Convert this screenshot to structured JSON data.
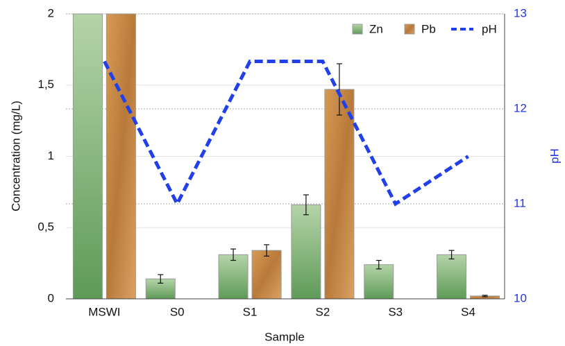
{
  "chart_data": {
    "type": "bar-line",
    "xlabel": "Sample",
    "ylabel": "Concentration (mg/L)",
    "y2label": "pH",
    "categories": [
      "MSWI",
      "S0",
      "S1",
      "S2",
      "S3",
      "S4"
    ],
    "series": [
      {
        "name": "Zn",
        "type": "bar",
        "color": "#7fb174",
        "values": [
          2,
          0.14,
          0.31,
          0.66,
          0.24,
          0.31
        ],
        "errors": [
          null,
          0.03,
          0.04,
          0.07,
          0.03,
          0.03
        ]
      },
      {
        "name": "Pb",
        "type": "bar",
        "color": "#c68a45",
        "values": [
          2,
          null,
          0.34,
          1.47,
          null,
          0.02
        ],
        "errors": [
          null,
          null,
          0.04,
          0.18,
          null,
          0.005
        ]
      },
      {
        "name": "pH",
        "type": "line",
        "axis": "y2",
        "color": "#2140e8",
        "values": [
          12.5,
          11.0,
          12.5,
          12.5,
          11.0,
          11.5
        ]
      }
    ],
    "ylim": [
      0,
      2
    ],
    "yticks": [
      0,
      {
        "value": 0.5,
        "label": "0,5"
      },
      1,
      {
        "value": 1.5,
        "label": "1,5"
      },
      2
    ],
    "y2lim": [
      10,
      13
    ],
    "y2ticks": [
      10,
      11,
      12,
      13
    ],
    "grid": true,
    "legend": "top-right"
  }
}
